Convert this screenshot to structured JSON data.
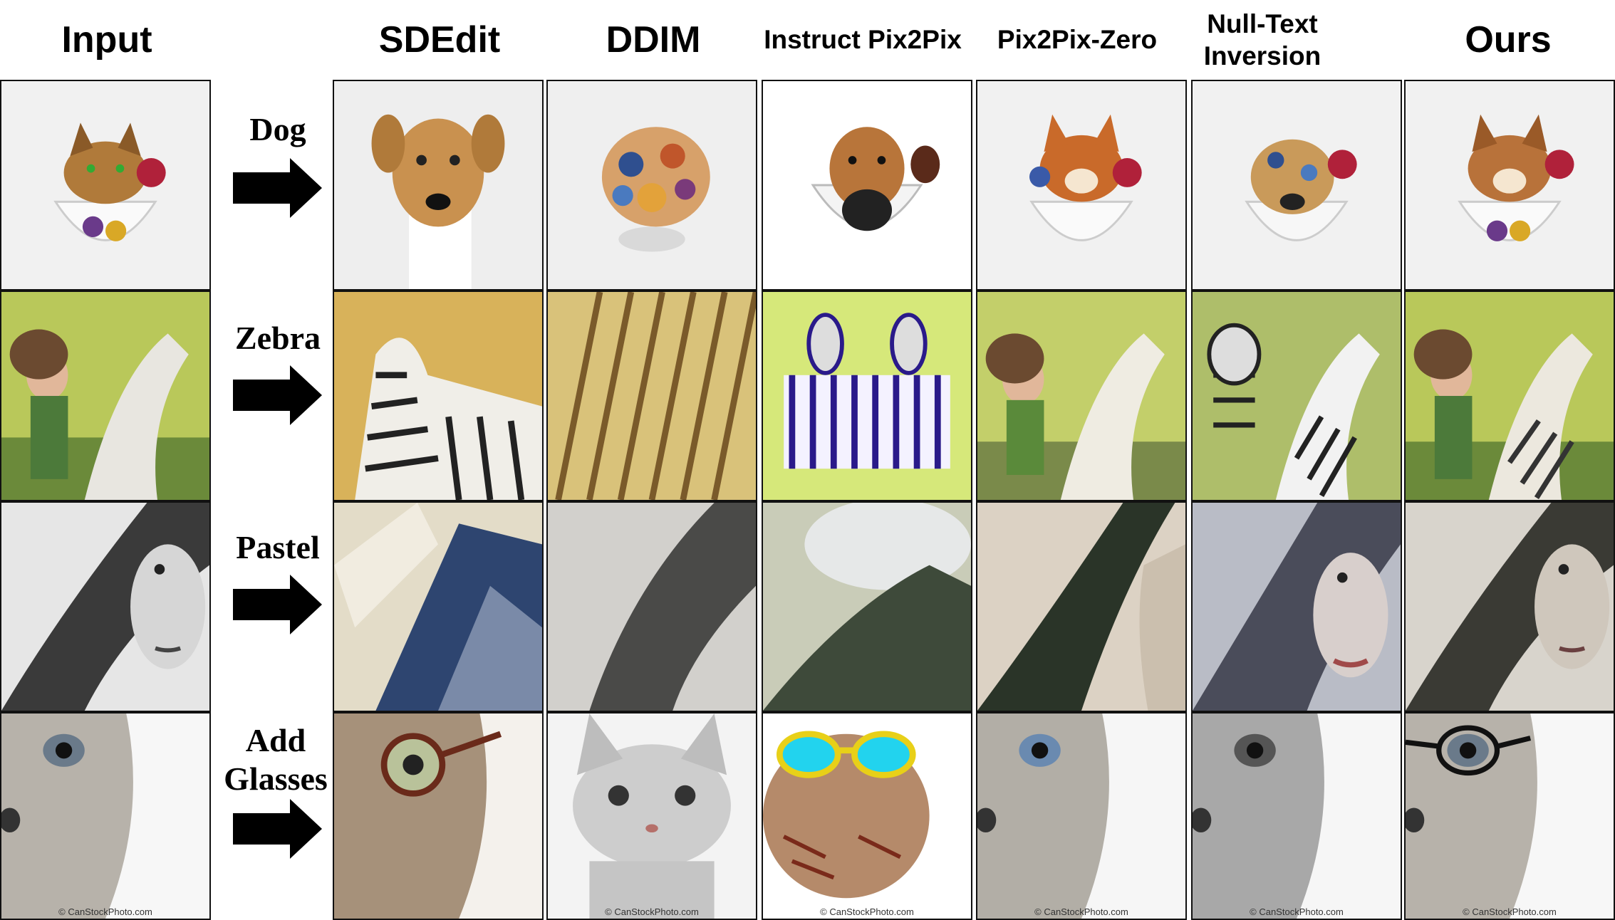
{
  "headers": [
    "Input",
    "SDEdit",
    "DDIM",
    "Instruct Pix2Pix",
    "Pix2Pix-Zero",
    "Null-Text Inversion",
    "Ours"
  ],
  "prompts": [
    "Dog",
    "Zebra",
    "Pastel",
    "Add Glasses"
  ],
  "rows": [
    {
      "prompt": "Dog",
      "cells": [
        "Input: cat in teacup",
        "SDEdit: dog",
        "DDIM: abstract blob",
        "Instruct Pix2Pix: dog in cup",
        "Pix2Pix-Zero: dog in cup",
        "Null-Text Inversion: dog in cup",
        "Ours: dog in teacup"
      ]
    },
    {
      "prompt": "Zebra",
      "cells": [
        "Input: girl on horse",
        "SDEdit: zebra",
        "DDIM: striped texture",
        "Instruct Pix2Pix: two zebras",
        "Pix2Pix-Zero: girl on horse",
        "Null-Text Inversion: girl and zebra",
        "Ours: girl on zebra"
      ]
    },
    {
      "prompt": "Pastel",
      "cells": [
        "Input: pencil sketch woman",
        "SDEdit: pastel strokes",
        "DDIM: blurred hair",
        "Instruct Pix2Pix: hazy hair",
        "Pix2Pix-Zero: dark hair",
        "Null-Text Inversion: woman portrait",
        "Ours: pastel woman"
      ]
    },
    {
      "prompt": "Add Glasses",
      "cells": [
        "Input: cat close-up",
        "SDEdit: cat with round glasses",
        "DDIM: kitten",
        "Instruct Pix2Pix: cat with cyan sunglasses",
        "Pix2Pix-Zero: cat close-up",
        "Null-Text Inversion: cat close-up",
        "Ours: cat with glasses"
      ]
    }
  ],
  "watermark": "© CanStockPhoto.com",
  "icons": {
    "arrow": "right-arrow-icon"
  },
  "colors": {
    "border": "#111111",
    "arrow": "#000000",
    "sunglasses": "#22d3ee"
  }
}
